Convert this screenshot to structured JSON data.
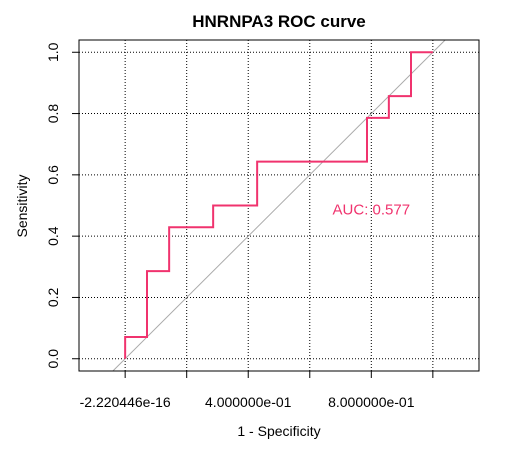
{
  "chart_data": {
    "type": "line",
    "title": "HNRNPA3 ROC curve",
    "xlabel": "1 - Specificity",
    "ylabel": "Sensitivity",
    "xlim": [
      -0.15,
      1.15
    ],
    "ylim": [
      -0.04,
      1.04
    ],
    "x_ticks": [
      {
        "value": 0.0,
        "label": "-2.220446e-16"
      },
      {
        "value": 0.2,
        "label": ""
      },
      {
        "value": 0.4,
        "label": "4.000000e-01"
      },
      {
        "value": 0.6,
        "label": ""
      },
      {
        "value": 0.8,
        "label": "8.000000e-01"
      },
      {
        "value": 1.0,
        "label": ""
      }
    ],
    "y_ticks": [
      {
        "value": 0.0,
        "label": "0.0"
      },
      {
        "value": 0.2,
        "label": "0.2"
      },
      {
        "value": 0.4,
        "label": "0.4"
      },
      {
        "value": 0.6,
        "label": "0.6"
      },
      {
        "value": 0.8,
        "label": "0.8"
      },
      {
        "value": 1.0,
        "label": "1.0"
      }
    ],
    "grid": true,
    "series": [
      {
        "color": "#f0336e",
        "x": [
          0.0,
          0.0,
          0.071,
          0.071,
          0.143,
          0.143,
          0.286,
          0.286,
          0.429,
          0.429,
          0.786,
          0.786,
          0.857,
          0.857,
          0.929,
          0.929,
          1.0
        ],
        "y": [
          0.0,
          0.071,
          0.071,
          0.286,
          0.286,
          0.429,
          0.429,
          0.5,
          0.5,
          0.643,
          0.643,
          0.786,
          0.786,
          0.857,
          0.857,
          1.0,
          1.0
        ]
      }
    ],
    "reference_line": {
      "color": "#aaaaaa",
      "from": [
        0,
        0
      ],
      "to": [
        1,
        1
      ]
    },
    "annotation": {
      "text": "AUC: 0.577",
      "x": 0.8,
      "y": 0.47,
      "color": "#f0336e"
    }
  }
}
